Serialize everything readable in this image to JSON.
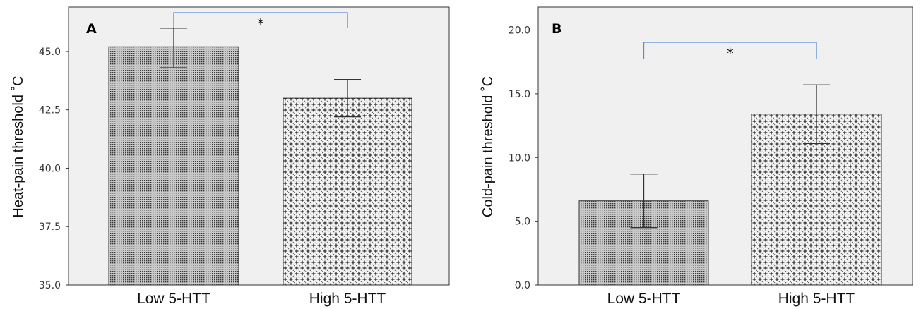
{
  "chart_data": [
    {
      "type": "bar",
      "panel_label": "A",
      "categories": [
        "Low 5-HTT",
        "High 5-HTT"
      ],
      "values": [
        45.2,
        43.0
      ],
      "error": [
        [
          44.3,
          46.0
        ],
        [
          42.2,
          43.8
        ]
      ],
      "ylabel": "Heat-pain threshold ˚C",
      "ylim": [
        35.0,
        46.9
      ],
      "yticks": [
        "35.0",
        "37.5",
        "40.0",
        "42.5",
        "45.0"
      ],
      "significance": "*",
      "grid": false,
      "background": "#f0f0f0",
      "bracket_color": "#5b8ed0",
      "patterns": [
        "dense-dots",
        "cross-hatch"
      ]
    },
    {
      "type": "bar",
      "panel_label": "B",
      "categories": [
        "Low 5-HTT",
        "High 5-HTT"
      ],
      "values": [
        6.6,
        13.4
      ],
      "error": [
        [
          4.5,
          8.7
        ],
        [
          11.1,
          15.7
        ]
      ],
      "ylabel": "Cold-pain threshold ˚C",
      "ylim": [
        0.0,
        21.8
      ],
      "yticks": [
        "0.0",
        "5.0",
        "10.0",
        "15.0",
        "20.0"
      ],
      "significance": "*",
      "grid": false,
      "background": "#f0f0f0",
      "bracket_color": "#5b8ed0",
      "patterns": [
        "dense-dots",
        "cross-hatch"
      ]
    }
  ]
}
